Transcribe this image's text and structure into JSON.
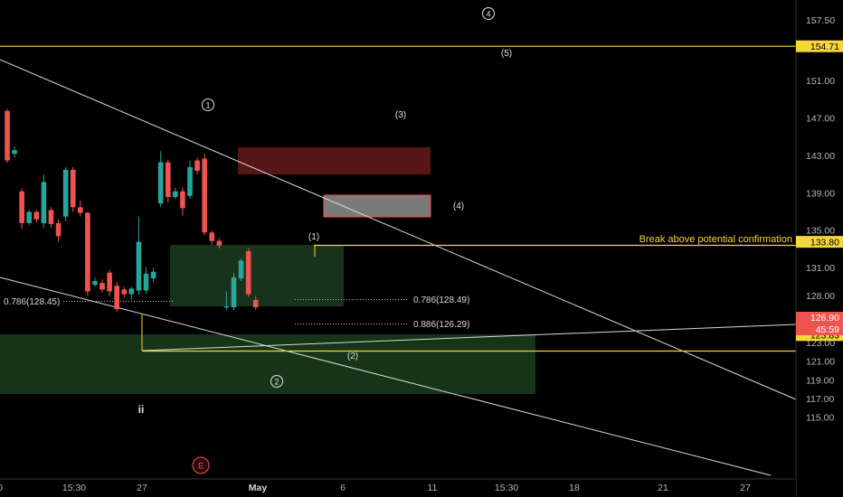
{
  "chart_data": {
    "type": "candlestick",
    "price_labels": [
      "157.50",
      "151.00",
      "147.00",
      "143.00",
      "139.00",
      "135.00",
      "131.00",
      "128.00",
      "125.00",
      "123.00",
      "121.00",
      "119.00",
      "117.00",
      "115.00"
    ],
    "price_ticks": [
      157.5,
      151,
      147,
      143,
      139,
      135,
      131,
      128,
      125,
      123,
      121,
      119,
      117,
      115
    ],
    "time_labels": [
      "0",
      "15:30",
      "27",
      "May",
      "6",
      "11",
      "15:30",
      "18",
      "21",
      "27"
    ],
    "ylim": [
      113.2,
      160
    ],
    "candles": [
      [
        147.8,
        142.5,
        148,
        142.2
      ],
      [
        143.2,
        143.6,
        144,
        142.8
      ],
      [
        139.2,
        135.8,
        139.5,
        135.2
      ],
      [
        135.8,
        137,
        137.2,
        135.6
      ],
      [
        137,
        136.2,
        137.2,
        135.9
      ],
      [
        135.8,
        140.2,
        141,
        135.3
      ],
      [
        137.2,
        135.7,
        137.5,
        135.3
      ],
      [
        135.8,
        134.4,
        136.2,
        133.8
      ],
      [
        136.5,
        141.5,
        141.8,
        136
      ],
      [
        141.5,
        137.5,
        141.8,
        137
      ],
      [
        137.5,
        136.9,
        138.2,
        136.5
      ],
      [
        136.9,
        128.5,
        137,
        128
      ],
      [
        129.2,
        129.6,
        130,
        129
      ],
      [
        129.4,
        128.7,
        129.8,
        128.4
      ],
      [
        130.5,
        128.5,
        130.8,
        128
      ],
      [
        129.1,
        126.6,
        129.5,
        126.3
      ],
      [
        128.7,
        128.2,
        129,
        127.8
      ],
      [
        128.2,
        128.8,
        129,
        127.6
      ],
      [
        128.6,
        133.8,
        136.5,
        128.1
      ],
      [
        128.6,
        130.4,
        131.1,
        128.2
      ],
      [
        129.9,
        130.6,
        131,
        129.5
      ],
      [
        137.9,
        142.3,
        143.5,
        137.5
      ],
      [
        142.3,
        138.6,
        142.6,
        138
      ],
      [
        138.6,
        139.2,
        139.6,
        138.4
      ],
      [
        139.2,
        137.4,
        139.6,
        136.6
      ],
      [
        138.7,
        141.8,
        142.5,
        138.4
      ],
      [
        142.5,
        141.4,
        142.8,
        141
      ],
      [
        142.7,
        134.8,
        143.2,
        134.5
      ],
      [
        134.8,
        133.9,
        135,
        133.5
      ],
      [
        133.9,
        133.4,
        134.2,
        133.1
      ],
      [
        126.8,
        126.9,
        128.5,
        126.5
      ],
      [
        126.8,
        130,
        130.5,
        126.5
      ],
      [
        129.9,
        131.8,
        132,
        129.6
      ],
      [
        132.8,
        128.2,
        133.1,
        127.9
      ],
      [
        127.6,
        126.8,
        128,
        126.5
      ]
    ],
    "horizontal_lines": [
      {
        "price": 154.71,
        "label": "154.71"
      },
      {
        "price": 133.8,
        "label": "133.80"
      },
      {
        "price": 123.83,
        "label": "123.83"
      }
    ],
    "current_price": {
      "label": "126.90",
      "countdown": "45:59"
    },
    "annotation_text": "Break above potential confirmation",
    "fib_labels": [
      "0.786(128.45)",
      "0.786(128.49)",
      "0.886(126.29)"
    ],
    "wave_labels": {
      "circled": [
        "4",
        "1",
        "2"
      ],
      "parenthesized": [
        "(5)",
        "(3)",
        "(4)",
        "(1)",
        "(2)"
      ],
      "roman": [
        "ii"
      ],
      "event": "E"
    }
  },
  "colors": {
    "up": "#26a69a",
    "down": "#ef5350",
    "level": "#f5d73a",
    "trend": "#d8d8d8",
    "axis_text": "#b2b5be",
    "background": "#000000",
    "zone_green": "#16351b",
    "zone_red": "#5a1717"
  }
}
